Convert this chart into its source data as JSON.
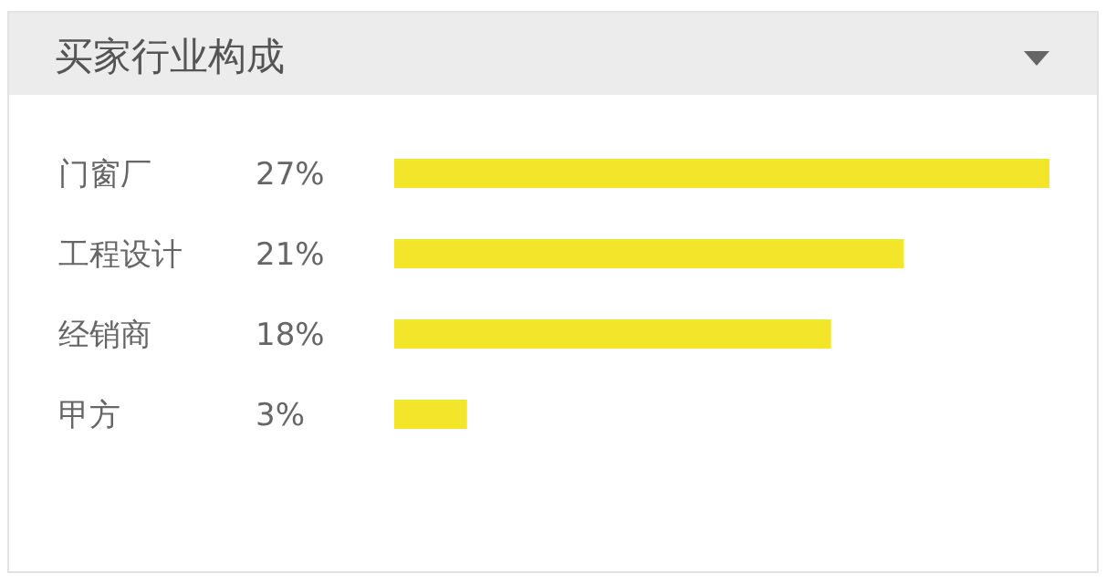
{
  "chart_data": {
    "type": "bar",
    "orientation": "horizontal",
    "title": "买家行业构成",
    "categories": [
      "门窗厂",
      "工程设计",
      "经销商",
      "甲方"
    ],
    "values": [
      27,
      21,
      18,
      3
    ],
    "value_labels": [
      "27%",
      "21%",
      "18%",
      "3%"
    ],
    "color": "#f2e52a"
  }
}
